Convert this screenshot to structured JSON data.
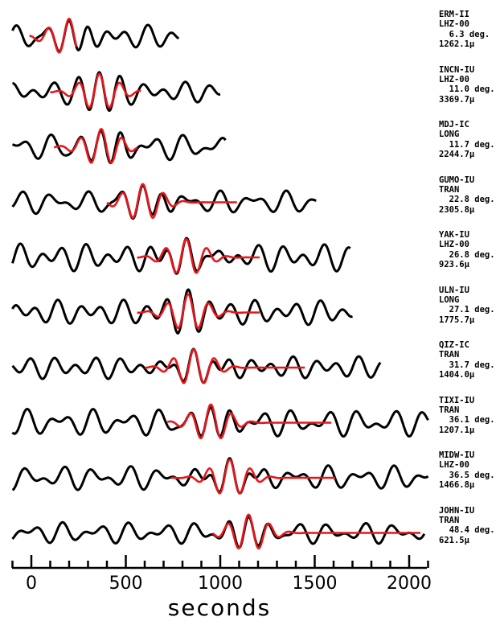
{
  "chart_data": {
    "type": "line",
    "xlabel": "seconds",
    "xlim": [
      -100,
      2100
    ],
    "xticks": [
      0,
      500,
      1000,
      1500,
      2000
    ],
    "minor_tick_step": 100,
    "legend": "none",
    "grid": false,
    "colors": {
      "data": "#000000",
      "synthetic": "#e8161b"
    },
    "series": [
      {
        "station": "ERM-II",
        "channel": "LHZ-00",
        "distance": "6.3 deg.",
        "amplitude": "1262.1μ",
        "data_range": [
          -100,
          780
        ],
        "fit_range": [
          -10,
          240
        ],
        "peak_time": 200,
        "period": 110
      },
      {
        "station": "INCN-IU",
        "channel": "LHZ-00",
        "distance": "11.0 deg.",
        "amplitude": "3369.7μ",
        "data_range": [
          -100,
          1000
        ],
        "fit_range": [
          100,
          580
        ],
        "peak_time": 360,
        "period": 110
      },
      {
        "station": "MDJ-IC",
        "channel": "LONG",
        "distance": "11.7 deg.",
        "amplitude": "2244.7μ",
        "data_range": [
          -100,
          1030
        ],
        "fit_range": [
          120,
          560
        ],
        "peak_time": 370,
        "period": 110
      },
      {
        "station": "GUMO-IU",
        "channel": "TRAN",
        "distance": "22.8 deg.",
        "amplitude": "2305.8μ",
        "data_range": [
          -100,
          1510
        ],
        "fit_range": [
          400,
          1090
        ],
        "peak_time": 590,
        "period": 110
      },
      {
        "station": "YAK-IU",
        "channel": "LHZ-00",
        "distance": "26.8 deg.",
        "amplitude": "923.6μ",
        "data_range": [
          -100,
          1690
        ],
        "fit_range": [
          560,
          1210
        ],
        "peak_time": 820,
        "period": 110
      },
      {
        "station": "ULN-IU",
        "channel": "LONG",
        "distance": "27.1 deg.",
        "amplitude": "1775.7μ",
        "data_range": [
          -100,
          1700
        ],
        "fit_range": [
          560,
          1210
        ],
        "peak_time": 830,
        "period": 110
      },
      {
        "station": "QIZ-IC",
        "channel": "TRAN",
        "distance": "31.7 deg.",
        "amplitude": "1404.0μ",
        "data_range": [
          -100,
          1850
        ],
        "fit_range": [
          600,
          1450
        ],
        "peak_time": 860,
        "period": 110
      },
      {
        "station": "TIXI-IU",
        "channel": "TRAN",
        "distance": "36.1 deg.",
        "amplitude": "1207.1μ",
        "data_range": [
          -100,
          2100
        ],
        "fit_range": [
          720,
          1590
        ],
        "peak_time": 950,
        "period": 110
      },
      {
        "station": "MIDW-IU",
        "channel": "LHZ-00",
        "distance": "36.5 deg.",
        "amplitude": "1466.8μ",
        "data_range": [
          -100,
          2100
        ],
        "fit_range": [
          740,
          1610
        ],
        "peak_time": 1050,
        "period": 110
      },
      {
        "station": "JOHN-IU",
        "channel": "TRAN",
        "distance": "48.4 deg.",
        "amplitude": "621.5μ",
        "data_range": [
          -100,
          2080
        ],
        "fit_range": [
          960,
          2060
        ],
        "peak_time": 1150,
        "period": 110
      }
    ]
  }
}
